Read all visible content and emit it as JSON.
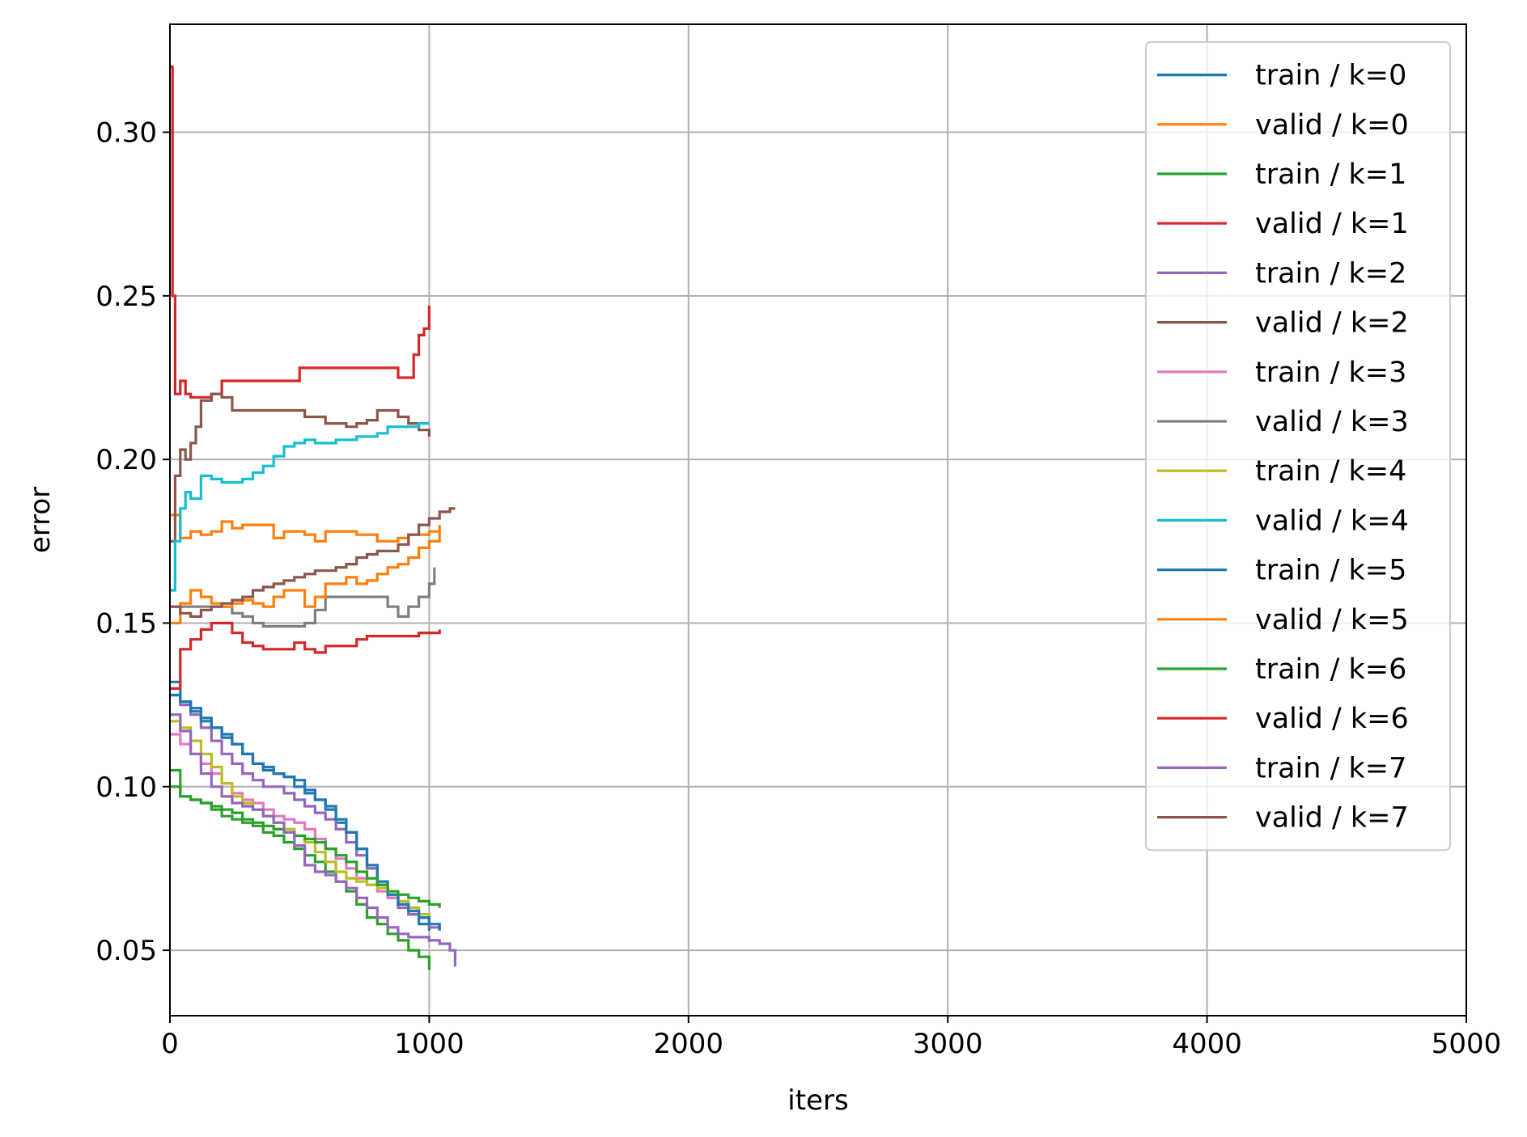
{
  "chart_data": {
    "type": "line",
    "title": "",
    "xlabel": "iters",
    "ylabel": "error",
    "xlim": [
      0,
      5000
    ],
    "ylim": [
      0.03,
      0.333
    ],
    "xticks": [
      0,
      1000,
      2000,
      3000,
      4000,
      5000
    ],
    "yticks": [
      0.05,
      0.1,
      0.15,
      0.2,
      0.25,
      0.3
    ],
    "xtick_labels": [
      "0",
      "1000",
      "2000",
      "3000",
      "4000",
      "5000"
    ],
    "ytick_labels": [
      "0.05",
      "0.10",
      "0.15",
      "0.20",
      "0.25",
      "0.30"
    ],
    "grid": true,
    "legend_position": "top-right",
    "series": [
      {
        "name": "train / k=0",
        "color": "#1f77b4",
        "x": [
          0,
          40,
          80,
          120,
          160,
          200,
          240,
          280,
          320,
          360,
          400,
          440,
          480,
          520,
          560,
          600,
          640,
          680,
          720,
          760,
          800,
          840,
          880,
          920,
          960,
          1000
        ],
        "y": [
          0.132,
          0.126,
          0.124,
          0.121,
          0.118,
          0.115,
          0.113,
          0.11,
          0.107,
          0.105,
          0.104,
          0.103,
          0.1,
          0.098,
          0.096,
          0.093,
          0.089,
          0.086,
          0.081,
          0.075,
          0.07,
          0.066,
          0.064,
          0.061,
          0.058,
          0.056
        ]
      },
      {
        "name": "valid / k=0",
        "color": "#ff7f0e",
        "x": [
          0,
          40,
          80,
          120,
          160,
          200,
          240,
          280,
          320,
          360,
          400,
          440,
          480,
          520,
          560,
          600,
          640,
          680,
          720,
          760,
          800,
          840,
          880,
          920,
          960,
          1000,
          1040
        ],
        "y": [
          0.183,
          0.176,
          0.178,
          0.177,
          0.178,
          0.181,
          0.179,
          0.18,
          0.18,
          0.18,
          0.176,
          0.178,
          0.178,
          0.177,
          0.175,
          0.178,
          0.178,
          0.178,
          0.177,
          0.177,
          0.175,
          0.175,
          0.176,
          0.177,
          0.177,
          0.178,
          0.18
        ]
      },
      {
        "name": "train / k=1",
        "color": "#2ca02c",
        "x": [
          0,
          40,
          80,
          120,
          160,
          200,
          240,
          280,
          320,
          360,
          400,
          440,
          480,
          520,
          560,
          600,
          640,
          680,
          720,
          760,
          800,
          840,
          880,
          920,
          960,
          1000
        ],
        "y": [
          0.105,
          0.097,
          0.096,
          0.095,
          0.093,
          0.091,
          0.09,
          0.089,
          0.088,
          0.086,
          0.085,
          0.083,
          0.081,
          0.079,
          0.077,
          0.074,
          0.071,
          0.068,
          0.064,
          0.06,
          0.058,
          0.055,
          0.053,
          0.05,
          0.048,
          0.044
        ]
      },
      {
        "name": "valid / k=1",
        "color": "#d62728",
        "x": [
          0,
          10,
          20,
          40,
          60,
          80,
          120,
          160,
          200,
          280,
          360,
          440,
          500,
          560,
          640,
          720,
          800,
          840,
          880,
          920,
          940,
          960,
          980,
          1000
        ],
        "y": [
          0.32,
          0.25,
          0.22,
          0.224,
          0.22,
          0.219,
          0.219,
          0.22,
          0.224,
          0.224,
          0.224,
          0.224,
          0.228,
          0.228,
          0.228,
          0.228,
          0.228,
          0.228,
          0.225,
          0.225,
          0.232,
          0.238,
          0.24,
          0.247
        ]
      },
      {
        "name": "train / k=2",
        "color": "#9467bd",
        "x": [
          0,
          40,
          80,
          120,
          160,
          200,
          240,
          280,
          320,
          360,
          400,
          440,
          480,
          520,
          560,
          600,
          640,
          680,
          720,
          760,
          800,
          840,
          880,
          920,
          960,
          1000,
          1040
        ],
        "y": [
          0.128,
          0.125,
          0.122,
          0.118,
          0.114,
          0.11,
          0.107,
          0.104,
          0.102,
          0.1,
          0.1,
          0.098,
          0.096,
          0.094,
          0.092,
          0.09,
          0.087,
          0.083,
          0.079,
          0.075,
          0.07,
          0.066,
          0.063,
          0.061,
          0.06,
          0.057,
          0.056
        ]
      },
      {
        "name": "valid / k=2",
        "color": "#8c564b",
        "x": [
          0,
          20,
          40,
          60,
          80,
          100,
          120,
          160,
          200,
          240,
          280,
          320,
          360,
          400,
          440,
          480,
          520,
          560,
          600,
          640,
          680,
          720,
          760,
          800,
          840,
          880,
          920,
          960,
          1000
        ],
        "y": [
          0.175,
          0.195,
          0.203,
          0.2,
          0.205,
          0.21,
          0.218,
          0.22,
          0.219,
          0.215,
          0.215,
          0.215,
          0.215,
          0.215,
          0.215,
          0.215,
          0.213,
          0.213,
          0.211,
          0.211,
          0.21,
          0.211,
          0.212,
          0.215,
          0.215,
          0.213,
          0.211,
          0.209,
          0.207
        ]
      },
      {
        "name": "train / k=3",
        "color": "#e377c2",
        "x": [
          0,
          40,
          80,
          120,
          160,
          200,
          240,
          280,
          320,
          360,
          400,
          440,
          480,
          520,
          560,
          600,
          640,
          680,
          720,
          760,
          800,
          840,
          880,
          920,
          960,
          1000
        ],
        "y": [
          0.116,
          0.113,
          0.11,
          0.107,
          0.104,
          0.101,
          0.098,
          0.096,
          0.095,
          0.093,
          0.091,
          0.09,
          0.089,
          0.087,
          0.084,
          0.081,
          0.078,
          0.075,
          0.072,
          0.07,
          0.068,
          0.066,
          0.064,
          0.062,
          0.06,
          0.058
        ]
      },
      {
        "name": "valid / k=3",
        "color": "#7f7f7f",
        "x": [
          0,
          40,
          80,
          120,
          160,
          200,
          240,
          280,
          320,
          360,
          400,
          440,
          480,
          520,
          560,
          600,
          640,
          680,
          720,
          760,
          800,
          840,
          880,
          920,
          960,
          1000,
          1020
        ],
        "y": [
          0.155,
          0.155,
          0.155,
          0.155,
          0.155,
          0.155,
          0.153,
          0.152,
          0.15,
          0.149,
          0.149,
          0.149,
          0.149,
          0.15,
          0.154,
          0.158,
          0.158,
          0.158,
          0.158,
          0.158,
          0.158,
          0.155,
          0.152,
          0.155,
          0.158,
          0.162,
          0.167
        ]
      },
      {
        "name": "train / k=4",
        "color": "#bcbd22",
        "x": [
          0,
          40,
          80,
          120,
          160,
          200,
          240,
          280,
          320,
          360,
          400,
          440,
          480,
          520,
          560,
          600,
          640,
          680,
          720,
          760,
          800,
          840,
          880,
          920,
          960,
          1000
        ],
        "y": [
          0.12,
          0.118,
          0.114,
          0.11,
          0.106,
          0.101,
          0.097,
          0.095,
          0.093,
          0.091,
          0.089,
          0.087,
          0.085,
          0.083,
          0.08,
          0.077,
          0.074,
          0.072,
          0.071,
          0.07,
          0.069,
          0.067,
          0.065,
          0.063,
          0.061,
          0.059
        ]
      },
      {
        "name": "valid / k=4",
        "color": "#17becf",
        "x": [
          0,
          20,
          40,
          60,
          80,
          120,
          160,
          200,
          240,
          280,
          320,
          360,
          400,
          440,
          480,
          520,
          560,
          600,
          640,
          680,
          720,
          760,
          800,
          840,
          880,
          920,
          960,
          1000
        ],
        "y": [
          0.16,
          0.175,
          0.185,
          0.19,
          0.188,
          0.195,
          0.194,
          0.193,
          0.193,
          0.194,
          0.196,
          0.198,
          0.201,
          0.204,
          0.205,
          0.206,
          0.205,
          0.205,
          0.206,
          0.206,
          0.207,
          0.207,
          0.208,
          0.21,
          0.21,
          0.21,
          0.211,
          0.211
        ]
      },
      {
        "name": "train / k=5",
        "color": "#1f77b4",
        "x": [
          0,
          40,
          80,
          120,
          160,
          200,
          240,
          280,
          320,
          360,
          400,
          440,
          480,
          520,
          560,
          600,
          640,
          680,
          720,
          760,
          800,
          840,
          880,
          920,
          960,
          1000,
          1040
        ],
        "y": [
          0.128,
          0.126,
          0.123,
          0.12,
          0.118,
          0.116,
          0.113,
          0.11,
          0.107,
          0.106,
          0.104,
          0.103,
          0.102,
          0.099,
          0.096,
          0.094,
          0.09,
          0.086,
          0.081,
          0.076,
          0.071,
          0.067,
          0.064,
          0.062,
          0.06,
          0.058,
          0.056
        ]
      },
      {
        "name": "valid / k=5",
        "color": "#ff7f0e",
        "x": [
          0,
          40,
          80,
          120,
          160,
          200,
          240,
          280,
          320,
          360,
          400,
          440,
          480,
          520,
          560,
          600,
          640,
          680,
          720,
          760,
          800,
          840,
          880,
          920,
          960,
          1000,
          1040
        ],
        "y": [
          0.15,
          0.156,
          0.16,
          0.158,
          0.156,
          0.155,
          0.156,
          0.157,
          0.156,
          0.155,
          0.158,
          0.16,
          0.16,
          0.155,
          0.158,
          0.162,
          0.162,
          0.164,
          0.162,
          0.163,
          0.165,
          0.167,
          0.168,
          0.17,
          0.173,
          0.175,
          0.178
        ]
      },
      {
        "name": "train / k=6",
        "color": "#2ca02c",
        "x": [
          0,
          40,
          80,
          120,
          160,
          200,
          240,
          280,
          320,
          360,
          400,
          440,
          480,
          520,
          560,
          600,
          640,
          680,
          720,
          760,
          800,
          840,
          880,
          920,
          960,
          1000,
          1040
        ],
        "y": [
          0.1,
          0.097,
          0.096,
          0.095,
          0.094,
          0.093,
          0.092,
          0.09,
          0.089,
          0.088,
          0.087,
          0.086,
          0.085,
          0.084,
          0.083,
          0.081,
          0.079,
          0.077,
          0.074,
          0.072,
          0.07,
          0.068,
          0.067,
          0.066,
          0.065,
          0.064,
          0.063
        ]
      },
      {
        "name": "valid / k=6",
        "color": "#d62728",
        "x": [
          0,
          40,
          80,
          120,
          160,
          200,
          240,
          280,
          320,
          360,
          400,
          440,
          480,
          520,
          560,
          600,
          640,
          680,
          720,
          760,
          800,
          840,
          880,
          920,
          960,
          1000,
          1040
        ],
        "y": [
          0.13,
          0.142,
          0.145,
          0.148,
          0.15,
          0.15,
          0.147,
          0.144,
          0.143,
          0.142,
          0.142,
          0.142,
          0.144,
          0.142,
          0.141,
          0.143,
          0.143,
          0.143,
          0.145,
          0.146,
          0.146,
          0.146,
          0.146,
          0.146,
          0.147,
          0.147,
          0.148
        ]
      },
      {
        "name": "train / k=7",
        "color": "#9467bd",
        "x": [
          0,
          40,
          80,
          120,
          160,
          200,
          240,
          280,
          320,
          360,
          400,
          440,
          480,
          520,
          560,
          600,
          640,
          680,
          720,
          760,
          800,
          840,
          880,
          920,
          960,
          1000,
          1040,
          1080,
          1100
        ],
        "y": [
          0.122,
          0.117,
          0.11,
          0.104,
          0.1,
          0.097,
          0.095,
          0.094,
          0.093,
          0.091,
          0.089,
          0.086,
          0.082,
          0.076,
          0.074,
          0.073,
          0.071,
          0.069,
          0.066,
          0.063,
          0.06,
          0.057,
          0.055,
          0.054,
          0.054,
          0.053,
          0.052,
          0.05,
          0.045
        ]
      },
      {
        "name": "valid / k=7",
        "color": "#8c564b",
        "x": [
          0,
          40,
          80,
          120,
          160,
          200,
          240,
          280,
          320,
          360,
          400,
          440,
          480,
          520,
          560,
          600,
          640,
          680,
          720,
          760,
          800,
          840,
          880,
          920,
          960,
          1000,
          1040,
          1080,
          1100
        ],
        "y": [
          0.155,
          0.153,
          0.152,
          0.154,
          0.155,
          0.156,
          0.157,
          0.158,
          0.16,
          0.161,
          0.162,
          0.163,
          0.164,
          0.165,
          0.166,
          0.166,
          0.167,
          0.168,
          0.17,
          0.171,
          0.172,
          0.172,
          0.174,
          0.177,
          0.18,
          0.182,
          0.184,
          0.185,
          0.185
        ]
      }
    ]
  }
}
